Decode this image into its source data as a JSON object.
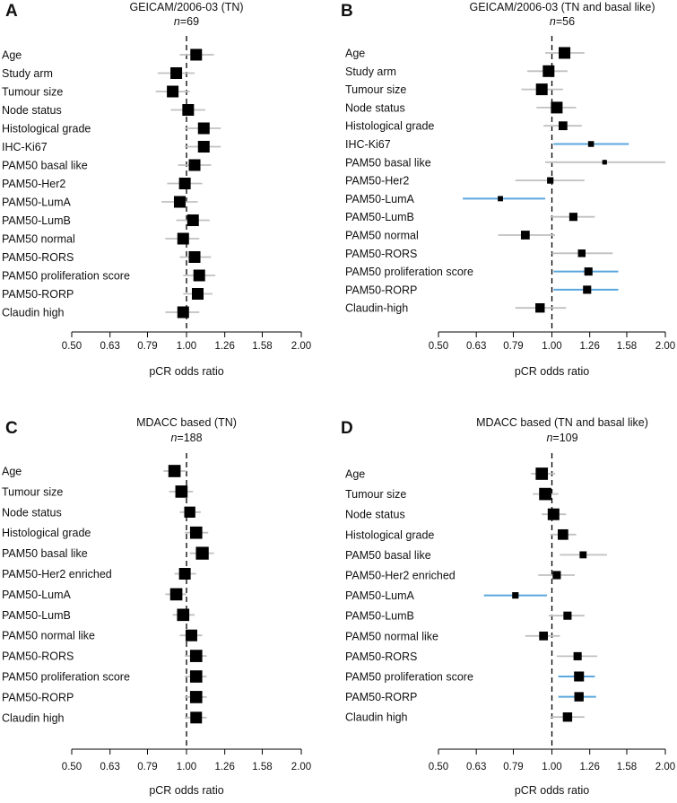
{
  "chart_data": [
    {
      "type": "forest",
      "panel": "A",
      "title": "GEICAM/2006-03 (TN)",
      "n_label": "n",
      "n_value": "=69",
      "xlabel": "pCR odds ratio",
      "scale": "log",
      "xlim": [
        0.5,
        2.0
      ],
      "x_ticks": [
        "0.50",
        "0.63",
        "0.79",
        "1.00",
        "1.26",
        "1.58",
        "2.00"
      ],
      "reference_line": 1.0,
      "rows": [
        {
          "label": "Age",
          "or": 1.06,
          "lo": 0.96,
          "hi": 1.18,
          "size": 1.0,
          "highlight": false
        },
        {
          "label": "Study arm",
          "or": 0.94,
          "lo": 0.84,
          "hi": 1.05,
          "size": 1.0,
          "highlight": false
        },
        {
          "label": "Tumour size",
          "or": 0.92,
          "lo": 0.83,
          "hi": 1.02,
          "size": 1.0,
          "highlight": false
        },
        {
          "label": "Node status",
          "or": 1.01,
          "lo": 0.91,
          "hi": 1.12,
          "size": 1.0,
          "highlight": false
        },
        {
          "label": "Histological grade",
          "or": 1.11,
          "lo": 0.99,
          "hi": 1.23,
          "size": 1.0,
          "highlight": false
        },
        {
          "label": "IHC-Ki67",
          "or": 1.11,
          "lo": 0.99,
          "hi": 1.23,
          "size": 1.0,
          "highlight": false
        },
        {
          "label": "PAM50 basal like",
          "or": 1.05,
          "lo": 0.95,
          "hi": 1.16,
          "size": 1.0,
          "highlight": false
        },
        {
          "label": "PAM50-Her2",
          "or": 0.99,
          "lo": 0.89,
          "hi": 1.1,
          "size": 1.0,
          "highlight": false
        },
        {
          "label": "PAM50-LumA",
          "or": 0.96,
          "lo": 0.86,
          "hi": 1.07,
          "size": 1.0,
          "highlight": false
        },
        {
          "label": "PAM50-LumB",
          "or": 1.04,
          "lo": 0.94,
          "hi": 1.15,
          "size": 1.0,
          "highlight": false
        },
        {
          "label": "PAM50 normal",
          "or": 0.98,
          "lo": 0.88,
          "hi": 1.08,
          "size": 1.0,
          "highlight": false
        },
        {
          "label": "PAM50-RORS",
          "or": 1.05,
          "lo": 0.96,
          "hi": 1.16,
          "size": 1.0,
          "highlight": false
        },
        {
          "label": "PAM50 proliferation score",
          "or": 1.08,
          "lo": 0.98,
          "hi": 1.19,
          "size": 1.0,
          "highlight": false
        },
        {
          "label": "PAM50-RORP",
          "or": 1.07,
          "lo": 0.98,
          "hi": 1.17,
          "size": 1.0,
          "highlight": false
        },
        {
          "label": "Claudin high",
          "or": 0.98,
          "lo": 0.88,
          "hi": 1.08,
          "size": 1.0,
          "highlight": false
        }
      ]
    },
    {
      "type": "forest",
      "panel": "B",
      "title": "GEICAM/2006-03 (TN and basal like)",
      "n_label": "n",
      "n_value": "=56",
      "xlabel": "pCR odds ratio",
      "scale": "log",
      "xlim": [
        0.5,
        2.0
      ],
      "x_ticks": [
        "0.50",
        "0.63",
        "0.79",
        "1.00",
        "1.26",
        "1.58",
        "2.00"
      ],
      "reference_line": 1.0,
      "rows": [
        {
          "label": "Age",
          "or": 1.08,
          "lo": 0.96,
          "hi": 1.22,
          "size": 1.0,
          "highlight": false
        },
        {
          "label": "Study arm",
          "or": 0.98,
          "lo": 0.86,
          "hi": 1.1,
          "size": 1.0,
          "highlight": false
        },
        {
          "label": "Tumour size",
          "or": 0.94,
          "lo": 0.83,
          "hi": 1.07,
          "size": 1.0,
          "highlight": false
        },
        {
          "label": "Node status",
          "or": 1.03,
          "lo": 0.91,
          "hi": 1.16,
          "size": 1.0,
          "highlight": false
        },
        {
          "label": "Histological grade",
          "or": 1.07,
          "lo": 0.95,
          "hi": 1.2,
          "size": 0.75,
          "highlight": false
        },
        {
          "label": "IHC-Ki67",
          "or": 1.27,
          "lo": 1.01,
          "hi": 1.6,
          "size": 0.5,
          "highlight": true
        },
        {
          "label": "PAM50 basal like",
          "or": 1.38,
          "lo": 0.96,
          "hi": 2.0,
          "size": 0.4,
          "highlight": false
        },
        {
          "label": "PAM50-Her2",
          "or": 0.99,
          "lo": 0.8,
          "hi": 1.22,
          "size": 0.55,
          "highlight": false
        },
        {
          "label": "PAM50-LumA",
          "or": 0.73,
          "lo": 0.58,
          "hi": 0.96,
          "size": 0.45,
          "highlight": true
        },
        {
          "label": "PAM50-LumB",
          "or": 1.14,
          "lo": 0.99,
          "hi": 1.3,
          "size": 0.7,
          "highlight": false
        },
        {
          "label": "PAM50 normal",
          "or": 0.85,
          "lo": 0.72,
          "hi": 1.02,
          "size": 0.75,
          "highlight": false
        },
        {
          "label": "PAM50-RORS",
          "or": 1.2,
          "lo": 1.0,
          "hi": 1.45,
          "size": 0.65,
          "highlight": false
        },
        {
          "label": "PAM50 proliferation score",
          "or": 1.25,
          "lo": 1.01,
          "hi": 1.5,
          "size": 0.7,
          "highlight": true
        },
        {
          "label": "PAM50-RORP",
          "or": 1.24,
          "lo": 1.01,
          "hi": 1.5,
          "size": 0.7,
          "highlight": true
        },
        {
          "label": "Claudin-high",
          "or": 0.93,
          "lo": 0.8,
          "hi": 1.09,
          "size": 0.8,
          "highlight": false
        }
      ]
    },
    {
      "type": "forest",
      "panel": "C",
      "title": "MDACC based (TN)",
      "n_label": "n",
      "n_value": "=188",
      "xlabel": "pCR odds ratio",
      "scale": "log",
      "xlim": [
        0.5,
        2.0
      ],
      "x_ticks": [
        "0.50",
        "0.63",
        "0.79",
        "1.00",
        "1.26",
        "1.58",
        "2.00"
      ],
      "reference_line": 1.0,
      "rows": [
        {
          "label": "Age",
          "or": 0.93,
          "lo": 0.87,
          "hi": 1.0,
          "size": 1.05,
          "highlight": false
        },
        {
          "label": "Tumour size",
          "or": 0.97,
          "lo": 0.9,
          "hi": 1.04,
          "size": 1.05,
          "highlight": false
        },
        {
          "label": "Node status",
          "or": 1.02,
          "lo": 0.96,
          "hi": 1.09,
          "size": 0.95,
          "highlight": false
        },
        {
          "label": "Histological grade",
          "or": 1.06,
          "lo": 0.99,
          "hi": 1.14,
          "size": 1.05,
          "highlight": false
        },
        {
          "label": "PAM50 basal like",
          "or": 1.1,
          "lo": 1.02,
          "hi": 1.18,
          "size": 1.1,
          "highlight": false
        },
        {
          "label": "PAM50-Her2 enriched",
          "or": 0.99,
          "lo": 0.93,
          "hi": 1.06,
          "size": 1.0,
          "highlight": false
        },
        {
          "label": "PAM50-LumA",
          "or": 0.94,
          "lo": 0.88,
          "hi": 1.0,
          "size": 1.05,
          "highlight": false
        },
        {
          "label": "PAM50-LumB",
          "or": 0.98,
          "lo": 0.92,
          "hi": 1.05,
          "size": 1.05,
          "highlight": false
        },
        {
          "label": "PAM50 normal like",
          "or": 1.03,
          "lo": 0.96,
          "hi": 1.1,
          "size": 1.0,
          "highlight": false
        },
        {
          "label": "PAM50-RORS",
          "or": 1.06,
          "lo": 0.99,
          "hi": 1.13,
          "size": 1.05,
          "highlight": false
        },
        {
          "label": "PAM50 proliferation score",
          "or": 1.06,
          "lo": 0.99,
          "hi": 1.13,
          "size": 1.05,
          "highlight": false
        },
        {
          "label": "PAM50-RORP",
          "or": 1.06,
          "lo": 0.99,
          "hi": 1.13,
          "size": 1.05,
          "highlight": false
        },
        {
          "label": "Claudin high",
          "or": 1.06,
          "lo": 0.99,
          "hi": 1.13,
          "size": 1.0,
          "highlight": false
        }
      ]
    },
    {
      "type": "forest",
      "panel": "D",
      "title": "MDACC based (TN and basal like)",
      "n_label": "n",
      "n_value": "=109",
      "xlabel": "pCR odds ratio",
      "scale": "log",
      "xlim": [
        0.5,
        2.0
      ],
      "x_ticks": [
        "0.50",
        "0.63",
        "0.79",
        "1.00",
        "1.26",
        "1.58",
        "2.00"
      ],
      "reference_line": 1.0,
      "rows": [
        {
          "label": "Age",
          "or": 0.94,
          "lo": 0.88,
          "hi": 1.02,
          "size": 1.05,
          "highlight": false
        },
        {
          "label": "Tumour size",
          "or": 0.96,
          "lo": 0.89,
          "hi": 1.04,
          "size": 1.05,
          "highlight": false
        },
        {
          "label": "Node status",
          "or": 1.01,
          "lo": 0.94,
          "hi": 1.09,
          "size": 1.0,
          "highlight": false
        },
        {
          "label": "Histological grade",
          "or": 1.07,
          "lo": 0.99,
          "hi": 1.16,
          "size": 0.9,
          "highlight": false
        },
        {
          "label": "PAM50 basal like",
          "or": 1.21,
          "lo": 1.05,
          "hi": 1.4,
          "size": 0.6,
          "highlight": false
        },
        {
          "label": "PAM50-Her2 enriched",
          "or": 1.03,
          "lo": 0.92,
          "hi": 1.15,
          "size": 0.7,
          "highlight": false
        },
        {
          "label": "PAM50-LumA",
          "or": 0.8,
          "lo": 0.66,
          "hi": 0.97,
          "size": 0.55,
          "highlight": true
        },
        {
          "label": "PAM50-LumB",
          "or": 1.1,
          "lo": 0.98,
          "hi": 1.22,
          "size": 0.7,
          "highlight": false
        },
        {
          "label": "PAM50 normal like",
          "or": 0.95,
          "lo": 0.85,
          "hi": 1.05,
          "size": 0.75,
          "highlight": false
        },
        {
          "label": "PAM50-RORS",
          "or": 1.17,
          "lo": 1.03,
          "hi": 1.32,
          "size": 0.7,
          "highlight": false
        },
        {
          "label": "PAM50 proliferation score",
          "or": 1.18,
          "lo": 1.04,
          "hi": 1.3,
          "size": 0.85,
          "highlight": true
        },
        {
          "label": "PAM50-RORP",
          "or": 1.18,
          "lo": 1.04,
          "hi": 1.31,
          "size": 0.8,
          "highlight": true
        },
        {
          "label": "Claudin high",
          "or": 1.1,
          "lo": 0.99,
          "hi": 1.22,
          "size": 0.8,
          "highlight": false
        }
      ]
    }
  ],
  "colors": {
    "marker": "#000000",
    "ci_line": "#c0c0c0",
    "ci_highlight": "#5aa7de",
    "reference_line": "#000000",
    "axis": "#000000",
    "text": "#111111"
  }
}
